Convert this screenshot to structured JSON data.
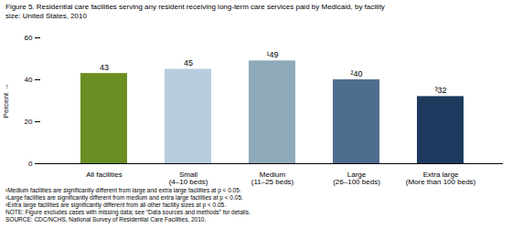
{
  "chart_data": {
    "type": "bar",
    "title": "Figure 5. Residential care facilities serving any resident receiving long-term care services paid by Medicaid, by facility\nsize: United States, 2010",
    "categories": [
      "All facilities",
      "Small\n(4–10 beds)",
      "Medium\n(11–25 beds)",
      "Large\n(26–100 beds)",
      "Extra large\n(More than 100 beds)"
    ],
    "values": [
      43,
      45,
      49,
      40,
      32
    ],
    "value_labels": [
      "43",
      "45",
      "¹49",
      "²40",
      "³32"
    ],
    "colors": [
      "#6b8e23",
      "#b8cce0",
      "#8faabb",
      "#4f6d8e",
      "#1e3a5f"
    ],
    "ylabel": "Percent",
    "ylim": [
      0,
      60
    ],
    "yticks": [
      0,
      20,
      40,
      60
    ],
    "grid": false,
    "data_labels": true,
    "annotations": [
      "¹Medium facilities are significantly different from large and extra large facilities at p < 0.05.",
      "²Large facilities are significantly different from medium and extra large facilities at p < 0.05.",
      "³Extra large facilities are significantly different from all other facility sizes at p < 0.05.",
      "NOTE: Figure excludes cases with missing data; see “Data sources and methods” for details.",
      "SOURCE: CDC/NCHS, National Survey of Residential Care Facilities, 2010."
    ]
  }
}
